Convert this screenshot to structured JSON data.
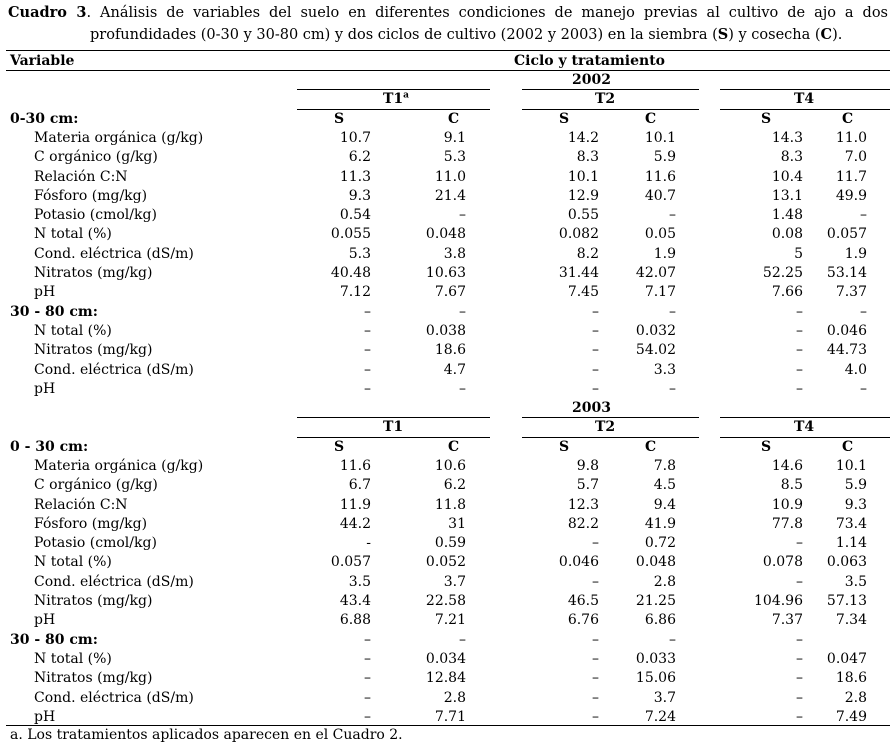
{
  "caption": {
    "label": "Cuadro 3",
    "line1": "Análisis de variables del suelo en diferentes condiciones de manejo previas al cultivo de ajo a dos",
    "line2_a": "profundidades (0-30 y 30-80 cm) y dos ciclos de cultivo (2002 y 2003) en la siembra (",
    "s": "S",
    "line2_b": ") y cosecha (",
    "c": "C",
    "line2_c": ")."
  },
  "header": {
    "variable": "Variable",
    "group": "Ciclo y tratamiento"
  },
  "blocks": [
    {
      "year": "2002",
      "treatments": [
        "T1",
        "T2",
        "T4"
      ],
      "t1_sup": "a",
      "s_label": "S",
      "c_label": "C",
      "sections": [
        {
          "title": "0-30 cm:",
          "rows": [
            {
              "name": "Materia orgánica (g/kg)",
              "v": [
                "10.7",
                "9.1",
                "14.2",
                "10.1",
                "14.3",
                "11.0"
              ]
            },
            {
              "name": "C orgánico (g/kg)",
              "v": [
                "6.2",
                "5.3",
                "8.3",
                "5.9",
                "8.3",
                "7.0"
              ]
            },
            {
              "name": "Relación C:N",
              "v": [
                "11.3",
                "11.0",
                "10.1",
                "11.6",
                "10.4",
                "11.7"
              ]
            },
            {
              "name": "Fósforo (mg/kg)",
              "v": [
                "9.3",
                "21.4",
                "12.9",
                "40.7",
                "13.1",
                "49.9"
              ]
            },
            {
              "name": "Potasio (cmol/kg)",
              "v": [
                "0.54",
                "–",
                "0.55",
                "–",
                "1.48",
                "–"
              ]
            },
            {
              "name": "N total (%)",
              "v": [
                "0.055",
                "0.048",
                "0.082",
                "0.05",
                "0.08",
                "0.057"
              ]
            },
            {
              "name": "Cond. eléctrica (dS/m)",
              "v": [
                "5.3",
                "3.8",
                "8.2",
                "1.9",
                "5",
                "1.9"
              ]
            },
            {
              "name": "Nitratos (mg/kg)",
              "v": [
                "40.48",
                "10.63",
                "31.44",
                "42.07",
                "52.25",
                "53.14"
              ]
            },
            {
              "name": "pH",
              "v": [
                "7.12",
                "7.67",
                "7.45",
                "7.17",
                "7.66",
                "7.37"
              ]
            }
          ]
        },
        {
          "title": "30 - 80 cm:",
          "title_vals": [
            "–",
            "–",
            "–",
            "–",
            "–",
            "–"
          ],
          "rows": [
            {
              "name": "N total (%)",
              "v": [
                "–",
                "0.038",
                "–",
                "0.032",
                "–",
                "0.046"
              ]
            },
            {
              "name": "Nitratos (mg/kg)",
              "v": [
                "–",
                "18.6",
                "–",
                "54.02",
                "–",
                "44.73"
              ]
            },
            {
              "name": "Cond. eléctrica (dS/m)",
              "v": [
                "–",
                "4.7",
                "–",
                "3.3",
                "–",
                "4.0"
              ]
            },
            {
              "name": "pH",
              "v": [
                "–",
                "–",
                "–",
                "–",
                "–",
                "–"
              ]
            }
          ]
        }
      ]
    },
    {
      "year": "2003",
      "treatments": [
        "T1",
        "T2",
        "T4"
      ],
      "s_label": "S",
      "c_label": "C",
      "sections": [
        {
          "title": "0 - 30 cm:",
          "rows": [
            {
              "name": "Materia orgánica (g/kg)",
              "v": [
                "11.6",
                "10.6",
                "9.8",
                "7.8",
                "14.6",
                "10.1"
              ]
            },
            {
              "name": "C orgánico (g/kg)",
              "v": [
                "6.7",
                "6.2",
                "5.7",
                "4.5",
                "8.5",
                "5.9"
              ]
            },
            {
              "name": "Relación C:N",
              "v": [
                "11.9",
                "11.8",
                "12.3",
                "9.4",
                "10.9",
                "9.3"
              ]
            },
            {
              "name": "Fósforo (mg/kg)",
              "v": [
                "44.2",
                "31",
                "82.2",
                "41.9",
                "77.8",
                "73.4"
              ]
            },
            {
              "name": "Potasio (cmol/kg)",
              "v": [
                "-",
                "0.59",
                "–",
                "0.72",
                "–",
                "1.14"
              ]
            },
            {
              "name": "N total (%)",
              "v": [
                "0.057",
                "0.052",
                "0.046",
                "0.048",
                "0.078",
                "0.063"
              ]
            },
            {
              "name": "Cond. eléctrica (dS/m)",
              "v": [
                "3.5",
                "3.7",
                "–",
                "2.8",
                "–",
                "3.5"
              ]
            },
            {
              "name": "Nitratos (mg/kg)",
              "v": [
                "43.4",
                "22.58",
                "46.5",
                "21.25",
                "104.96",
                "57.13"
              ]
            },
            {
              "name": "pH",
              "v": [
                "6.88",
                "7.21",
                "6.76",
                "6.86",
                "7.37",
                "7.34"
              ]
            }
          ]
        },
        {
          "title": "30 - 80 cm:",
          "title_vals": [
            "–",
            "–",
            "–",
            "–",
            "–",
            ""
          ],
          "rows": [
            {
              "name": "N total (%)",
              "v": [
                "–",
                "0.034",
                "–",
                "0.033",
                "–",
                "0.047"
              ]
            },
            {
              "name": "Nitratos (mg/kg)",
              "v": [
                "–",
                "12.84",
                "–",
                "15.06",
                "–",
                "18.6"
              ]
            },
            {
              "name": "Cond. eléctrica (dS/m)",
              "v": [
                "–",
                "2.8",
                "–",
                "3.7",
                "–",
                "2.8"
              ]
            },
            {
              "name": "pH",
              "v": [
                "–",
                "7.71",
                "–",
                "7.24",
                "–",
                "7.49"
              ]
            }
          ]
        }
      ]
    }
  ],
  "footnote": "a. Los tratamientos aplicados aparecen en el Cuadro 2."
}
